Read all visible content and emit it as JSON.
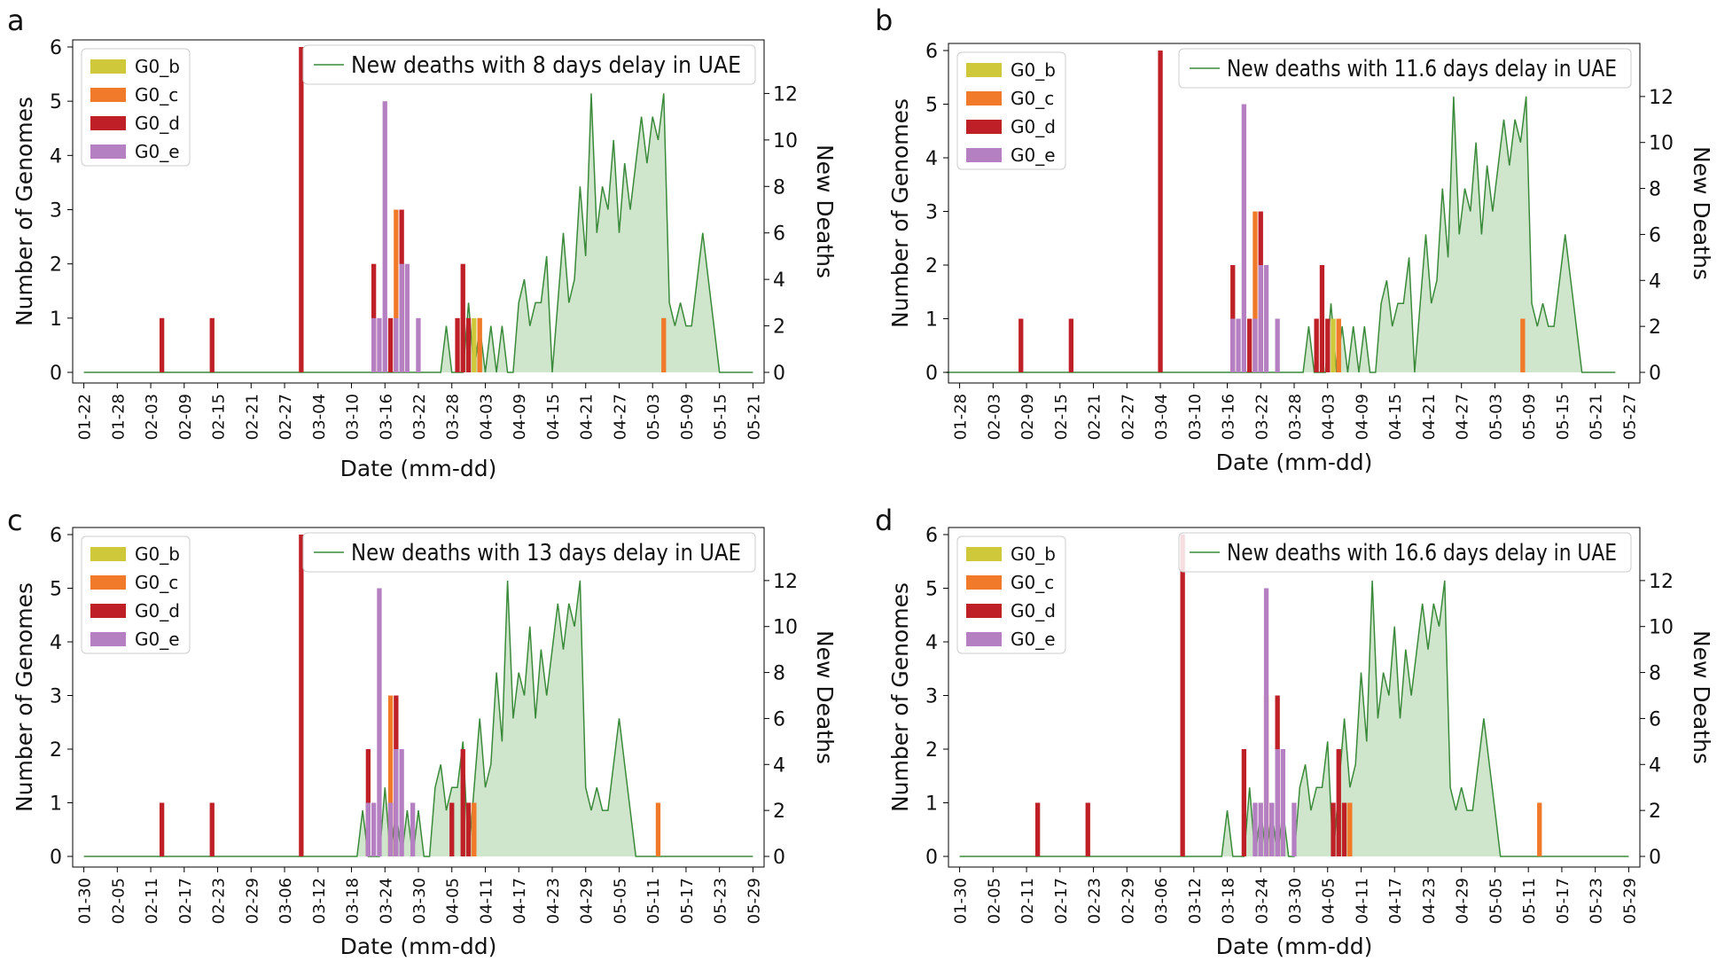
{
  "colors": {
    "g0_b": "#cfc83a",
    "g0_c": "#f0792a",
    "g0_d": "#bf2028",
    "g0_e": "#b580c2",
    "deaths_line": "#3b8a3b",
    "deaths_fill": "#cfe5cc"
  },
  "chart_data": [
    {
      "panel": "a",
      "type": "bar",
      "xlabel": "Date (mm-dd)",
      "ylabel": "Number of Genomes",
      "y2label": "New Deaths",
      "ylim": [
        0,
        6
      ],
      "y2lim": [
        0,
        14
      ],
      "yticks": [
        "0",
        "1",
        "2",
        "3",
        "4",
        "5",
        "6"
      ],
      "y2ticks": [
        "0",
        "2",
        "4",
        "6",
        "8",
        "10",
        "12"
      ],
      "xlim": [
        -2,
        122
      ],
      "xticks": [
        "01-22",
        "01-28",
        "02-03",
        "02-09",
        "02-15",
        "02-21",
        "02-27",
        "03-04",
        "03-10",
        "03-16",
        "03-22",
        "03-28",
        "04-03",
        "04-09",
        "04-15",
        "04-21",
        "04-27",
        "05-03",
        "05-09",
        "05-15",
        "05-21"
      ],
      "xtick_step": 6,
      "legend": [
        "G0_b",
        "G0_c",
        "G0_d",
        "G0_e"
      ],
      "line_legend": "New deaths with 8 days delay in UAE",
      "deaths_offset": 0,
      "deaths_x": [
        0,
        64,
        65,
        66,
        67,
        68,
        69,
        70,
        71,
        72,
        73,
        74,
        75,
        76,
        77,
        78,
        79,
        80,
        81,
        82,
        83,
        84,
        85,
        86,
        87,
        88,
        89,
        90,
        91,
        92,
        93,
        94,
        95,
        96,
        97,
        98,
        99,
        100,
        101,
        102,
        103,
        104,
        105,
        106,
        107,
        108,
        109,
        110,
        111,
        112,
        113,
        114,
        115,
        116,
        117,
        118,
        119,
        120
      ],
      "deaths_y": [
        0,
        0,
        2,
        0,
        0,
        0,
        3,
        0,
        2,
        0,
        2,
        0,
        2,
        0,
        0,
        3,
        4,
        2,
        3,
        3,
        5,
        0,
        3,
        6,
        3,
        4,
        8,
        5,
        12,
        6,
        8,
        7,
        10,
        6,
        9,
        7,
        9,
        11,
        9,
        11,
        10,
        12,
        3,
        2,
        3,
        2,
        2,
        4,
        6,
        4,
        2,
        0,
        0,
        0,
        0,
        0,
        0,
        0
      ],
      "bars": {
        "G0_b": {
          "x": [
            70,
            71
          ],
          "y": [
            1,
            1
          ]
        },
        "G0_c": {
          "x": [
            56,
            71,
            104
          ],
          "y": [
            3,
            1,
            1
          ]
        },
        "G0_d": {
          "x": [
            14,
            23,
            39,
            52,
            55,
            57,
            67,
            68,
            69
          ],
          "y": [
            1,
            1,
            6,
            2,
            1,
            3,
            1,
            2,
            1
          ]
        },
        "G0_e": {
          "x": [
            52,
            53,
            54,
            56,
            57,
            58,
            60
          ],
          "y": [
            1,
            1,
            5,
            1,
            2,
            2,
            1
          ]
        }
      }
    },
    {
      "panel": "b",
      "type": "bar",
      "xlabel": "Date (mm-dd)",
      "ylabel": "Number of Genomes",
      "y2label": "New Deaths",
      "ylim": [
        0,
        6
      ],
      "y2lim": [
        0,
        14
      ],
      "yticks": [
        "0",
        "1",
        "2",
        "3",
        "4",
        "5",
        "6"
      ],
      "y2ticks": [
        "0",
        "2",
        "4",
        "6",
        "8",
        "10",
        "12"
      ],
      "xlim": [
        -2,
        122
      ],
      "xticks": [
        "01-28",
        "02-03",
        "02-09",
        "02-15",
        "02-21",
        "02-27",
        "03-04",
        "03-10",
        "03-16",
        "03-22",
        "03-28",
        "04-03",
        "04-09",
        "04-15",
        "04-21",
        "04-27",
        "05-03",
        "05-09",
        "05-15",
        "05-21",
        "05-27"
      ],
      "xtick_step": 6,
      "legend": [
        "G0_b",
        "G0_c",
        "G0_d",
        "G0_e"
      ],
      "line_legend": "New deaths with 11.6 days delay in UAE",
      "deaths_offset": -2.4,
      "deaths_x": [
        0,
        64,
        65,
        66,
        67,
        68,
        69,
        70,
        71,
        72,
        73,
        74,
        75,
        76,
        77,
        78,
        79,
        80,
        81,
        82,
        83,
        84,
        85,
        86,
        87,
        88,
        89,
        90,
        91,
        92,
        93,
        94,
        95,
        96,
        97,
        98,
        99,
        100,
        101,
        102,
        103,
        104,
        105,
        106,
        107,
        108,
        109,
        110,
        111,
        112,
        113,
        114,
        115,
        116,
        117,
        118,
        119,
        120
      ],
      "deaths_y": [
        0,
        0,
        2,
        0,
        0,
        0,
        3,
        0,
        2,
        0,
        2,
        0,
        2,
        0,
        0,
        3,
        4,
        2,
        3,
        3,
        5,
        0,
        3,
        6,
        3,
        4,
        8,
        5,
        12,
        6,
        8,
        7,
        10,
        6,
        9,
        7,
        9,
        11,
        9,
        11,
        10,
        12,
        3,
        2,
        3,
        2,
        2,
        4,
        6,
        4,
        2,
        0,
        0,
        0,
        0,
        0,
        0,
        0
      ],
      "bars": {
        "G0_b": {
          "x": [
            67,
            68
          ],
          "y": [
            1,
            1
          ]
        },
        "G0_c": {
          "x": [
            53,
            68,
            101
          ],
          "y": [
            3,
            1,
            1
          ]
        },
        "G0_d": {
          "x": [
            11,
            20,
            36,
            49,
            52,
            54,
            64,
            65,
            66
          ],
          "y": [
            1,
            1,
            6,
            2,
            1,
            3,
            1,
            2,
            1
          ]
        },
        "G0_e": {
          "x": [
            49,
            50,
            51,
            53,
            54,
            55,
            57
          ],
          "y": [
            1,
            1,
            5,
            1,
            2,
            2,
            1
          ]
        }
      }
    },
    {
      "panel": "c",
      "type": "bar",
      "xlabel": "Date (mm-dd)",
      "ylabel": "Number of Genomes",
      "y2label": "New Deaths",
      "ylim": [
        0,
        6
      ],
      "y2lim": [
        0,
        14
      ],
      "yticks": [
        "0",
        "1",
        "2",
        "3",
        "4",
        "5",
        "6"
      ],
      "y2ticks": [
        "0",
        "2",
        "4",
        "6",
        "8",
        "10",
        "12"
      ],
      "xlim": [
        -2,
        122
      ],
      "xticks": [
        "01-30",
        "02-05",
        "02-11",
        "02-17",
        "02-23",
        "02-29",
        "03-06",
        "03-12",
        "03-18",
        "03-24",
        "03-30",
        "04-05",
        "04-11",
        "04-17",
        "04-23",
        "04-29",
        "05-05",
        "05-11",
        "05-17",
        "05-23",
        "05-29"
      ],
      "xtick_step": 6,
      "legend": [
        "G0_b",
        "G0_c",
        "G0_d",
        "G0_e"
      ],
      "line_legend": "New deaths with 13 days delay in UAE",
      "deaths_offset": 0,
      "deaths_x": [
        0,
        49,
        50,
        51,
        52,
        53,
        54,
        55,
        56,
        57,
        58,
        59,
        60,
        61,
        62,
        63,
        64,
        65,
        66,
        67,
        68,
        69,
        70,
        71,
        72,
        73,
        74,
        75,
        76,
        77,
        78,
        79,
        80,
        81,
        82,
        83,
        84,
        85,
        86,
        87,
        88,
        89,
        90,
        91,
        92,
        93,
        94,
        95,
        96,
        97,
        98,
        99,
        100,
        101,
        102,
        103,
        104,
        105,
        106,
        107,
        108,
        109,
        110,
        111,
        112,
        113,
        114,
        115,
        116,
        117,
        118,
        119,
        120
      ],
      "deaths_y": [
        0,
        0,
        2,
        0,
        0,
        0,
        3,
        0,
        2,
        0,
        2,
        0,
        2,
        0,
        0,
        3,
        4,
        2,
        3,
        3,
        5,
        0,
        3,
        6,
        3,
        4,
        8,
        5,
        12,
        6,
        8,
        7,
        10,
        6,
        9,
        7,
        9,
        11,
        9,
        11,
        10,
        12,
        3,
        2,
        3,
        2,
        2,
        4,
        6,
        4,
        2,
        0,
        0,
        0,
        0,
        0,
        0,
        0,
        0,
        0,
        0,
        0,
        0,
        0,
        0,
        0,
        0,
        0,
        0,
        0,
        0,
        0,
        0
      ],
      "bars": {
        "G0_b": {
          "x": [
            69,
            70
          ],
          "y": [
            1,
            1
          ]
        },
        "G0_c": {
          "x": [
            55,
            70,
            103
          ],
          "y": [
            3,
            1,
            1
          ]
        },
        "G0_d": {
          "x": [
            14,
            23,
            39,
            51,
            55,
            56,
            66,
            68,
            69
          ],
          "y": [
            1,
            1,
            6,
            2,
            1,
            3,
            1,
            2,
            1
          ]
        },
        "G0_e": {
          "x": [
            51,
            52,
            53,
            55,
            56,
            57,
            59
          ],
          "y": [
            1,
            1,
            5,
            1,
            2,
            2,
            1
          ]
        }
      }
    },
    {
      "panel": "d",
      "type": "bar",
      "xlabel": "Date (mm-dd)",
      "ylabel": "Number of Genomes",
      "y2label": "New Deaths",
      "ylim": [
        0,
        6
      ],
      "y2lim": [
        0,
        14
      ],
      "yticks": [
        "0",
        "1",
        "2",
        "3",
        "4",
        "5",
        "6"
      ],
      "y2ticks": [
        "0",
        "2",
        "4",
        "6",
        "8",
        "10",
        "12"
      ],
      "xlim": [
        -2,
        122
      ],
      "xticks": [
        "01-30",
        "02-05",
        "02-11",
        "02-17",
        "02-23",
        "02-29",
        "03-06",
        "03-12",
        "03-18",
        "03-24",
        "03-30",
        "04-05",
        "04-11",
        "04-17",
        "04-23",
        "04-29",
        "05-05",
        "05-11",
        "05-17",
        "05-23",
        "05-29"
      ],
      "xtick_step": 6,
      "legend": [
        "G0_b",
        "G0_c",
        "G0_d",
        "G0_e"
      ],
      "line_legend": "New deaths with 16.6 days delay in UAE",
      "deaths_offset": 0,
      "deaths_x": [
        0,
        47,
        48,
        49,
        50,
        51,
        52,
        53,
        54,
        55,
        56,
        57,
        58,
        59,
        60,
        61,
        62,
        63,
        64,
        65,
        66,
        67,
        68,
        69,
        70,
        71,
        72,
        73,
        74,
        75,
        76,
        77,
        78,
        79,
        80,
        81,
        82,
        83,
        84,
        85,
        86,
        87,
        88,
        89,
        90,
        91,
        92,
        93,
        94,
        95,
        96,
        97,
        98,
        99,
        100,
        101,
        102,
        103,
        104,
        105,
        106,
        107,
        108,
        109,
        110,
        111,
        112,
        113,
        114,
        115,
        116,
        117,
        118,
        119,
        120
      ],
      "deaths_y": [
        0,
        0,
        2,
        0,
        0,
        0,
        3,
        0,
        2,
        0,
        2,
        0,
        2,
        0,
        0,
        3,
        4,
        2,
        3,
        3,
        5,
        0,
        3,
        6,
        3,
        4,
        8,
        5,
        12,
        6,
        8,
        7,
        10,
        6,
        9,
        7,
        9,
        11,
        9,
        11,
        10,
        12,
        3,
        2,
        3,
        2,
        2,
        4,
        6,
        4,
        2,
        0,
        0,
        0,
        0,
        0,
        0,
        0,
        0,
        0,
        0,
        0,
        0,
        0,
        0,
        0,
        0,
        0,
        0,
        0,
        0,
        0,
        0,
        0,
        0
      ],
      "bars": {
        "G0_b": {
          "x": [
            69,
            70
          ],
          "y": [
            1,
            1
          ]
        },
        "G0_c": {
          "x": [
            55,
            70,
            104
          ],
          "y": [
            3,
            1,
            1
          ]
        },
        "G0_d": {
          "x": [
            14,
            23,
            40,
            51,
            56,
            57,
            67,
            68,
            69
          ],
          "y": [
            1,
            1,
            6,
            2,
            1,
            3,
            1,
            2,
            1
          ]
        },
        "G0_e": {
          "x": [
            53,
            54,
            55,
            56,
            57,
            58,
            60
          ],
          "y": [
            1,
            1,
            5,
            1,
            2,
            2,
            1
          ]
        }
      }
    }
  ]
}
